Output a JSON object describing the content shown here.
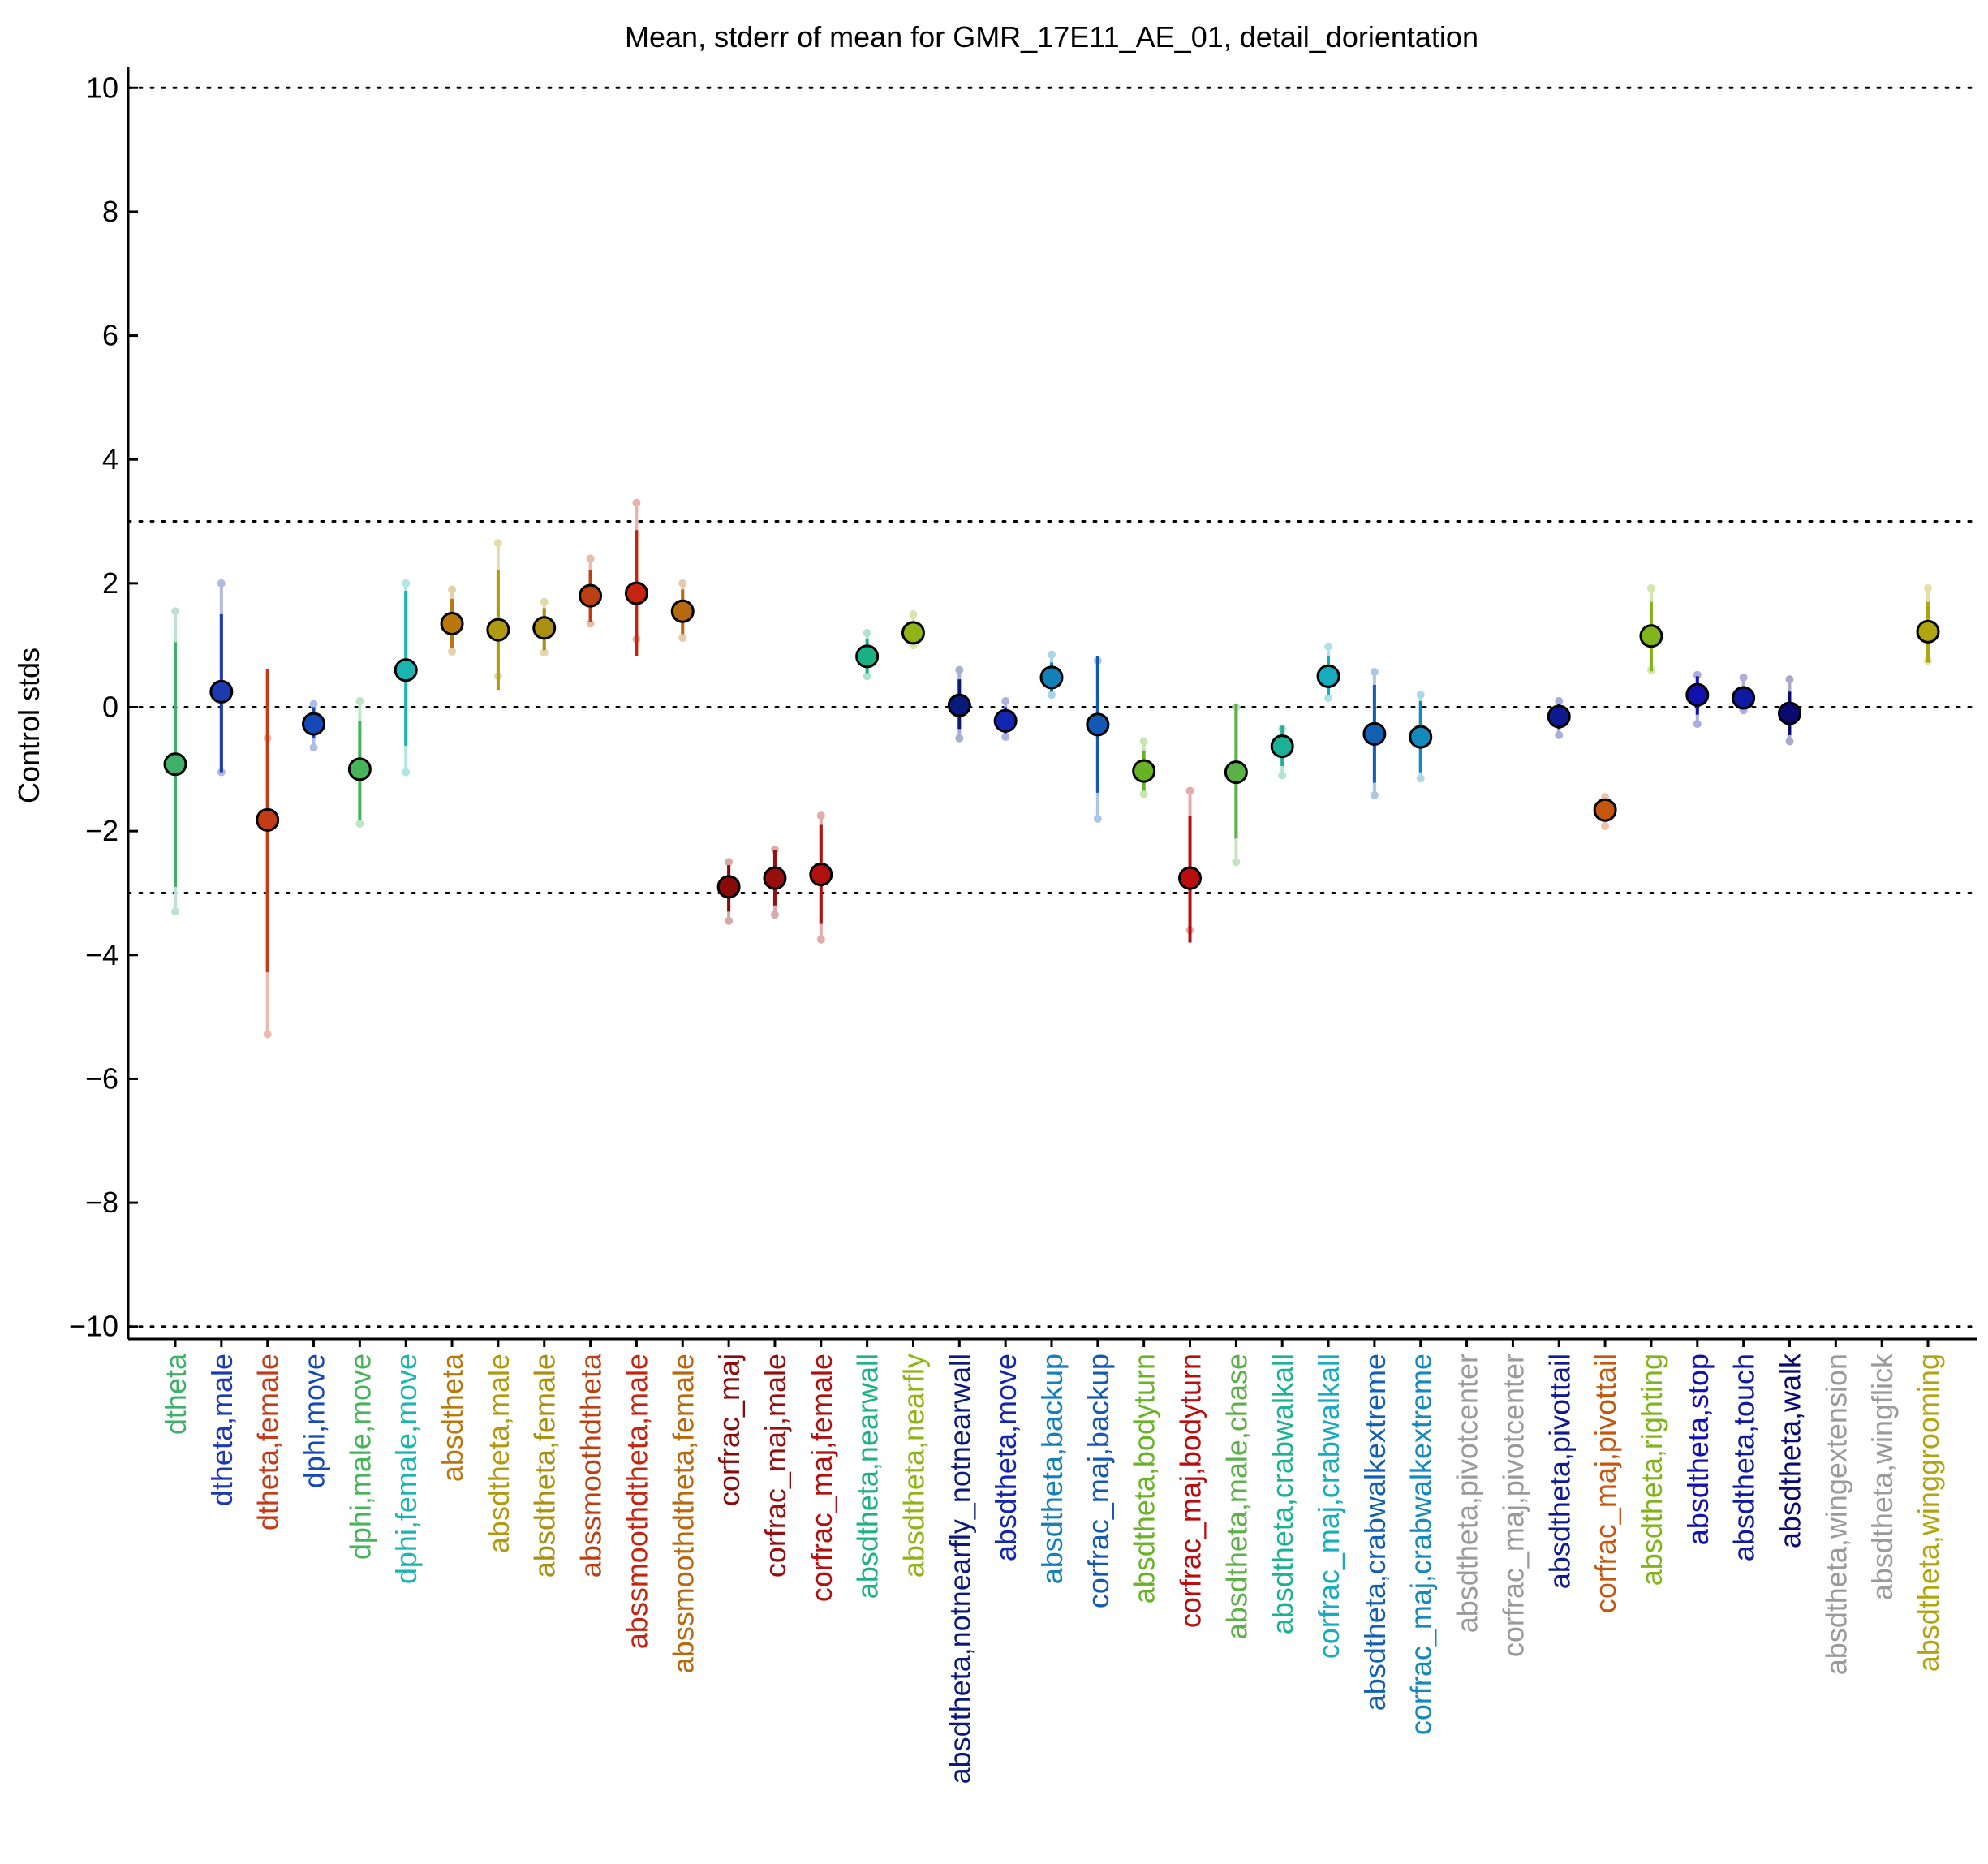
{
  "chart_data": {
    "type": "scatter",
    "title": "Mean, stderr of mean for GMR_17E11_AE_01, detail_dorientation",
    "xlabel": "",
    "ylabel": "Control stds",
    "ylim": [
      -10.2,
      10.2
    ],
    "yticks": [
      10,
      8,
      6,
      4,
      2,
      0,
      -2,
      -4,
      -6,
      -8,
      -10
    ],
    "ytick_labels": [
      "10",
      "8",
      "6",
      "4",
      "2",
      "0",
      "−2",
      "−4",
      "−6",
      "−8",
      "−10"
    ],
    "reference_lines": [
      10,
      3,
      0,
      -3,
      -10
    ],
    "grid": false,
    "legend": "none",
    "categories": [
      {
        "label": "dtheta",
        "color": "#3fb06a",
        "mean": -0.92,
        "err_lo": -2.9,
        "err_hi": 1.05,
        "ext_lo": -3.3,
        "ext_hi": 1.55
      },
      {
        "label": "dtheta,male",
        "color": "#1e3ab0",
        "mean": 0.25,
        "err_lo": -1.05,
        "err_hi": 1.5,
        "ext_lo": -1.05,
        "ext_hi": 2.0
      },
      {
        "label": "dtheta,female",
        "color": "#c33b17",
        "mean": -1.82,
        "err_lo": -4.28,
        "err_hi": 0.62,
        "ext_lo": -5.28,
        "ext_hi": -0.5
      },
      {
        "label": "dphi,move",
        "color": "#1549b8",
        "mean": -0.27,
        "err_lo": -0.5,
        "err_hi": 0.0,
        "ext_lo": -0.65,
        "ext_hi": 0.05
      },
      {
        "label": "dphi,male,move",
        "color": "#48b45a",
        "mean": -1.0,
        "err_lo": -1.82,
        "err_hi": -0.22,
        "ext_lo": -1.88,
        "ext_hi": 0.1
      },
      {
        "label": "dphi,female,move",
        "color": "#1ab5b0",
        "mean": 0.6,
        "err_lo": -0.62,
        "err_hi": 1.88,
        "ext_lo": -1.05,
        "ext_hi": 2.0
      },
      {
        "label": "absdtheta",
        "color": "#b8780e",
        "mean": 1.35,
        "err_lo": 0.95,
        "err_hi": 1.75,
        "ext_lo": 0.9,
        "ext_hi": 1.9
      },
      {
        "label": "absdtheta,male",
        "color": "#b09a10",
        "mean": 1.25,
        "err_lo": 0.28,
        "err_hi": 2.22,
        "ext_lo": 0.5,
        "ext_hi": 2.65
      },
      {
        "label": "absdtheta,female",
        "color": "#a98f12",
        "mean": 1.28,
        "err_lo": 0.92,
        "err_hi": 1.6,
        "ext_lo": 0.88,
        "ext_hi": 1.7
      },
      {
        "label": "abssmoothdtheta",
        "color": "#bd4012",
        "mean": 1.8,
        "err_lo": 1.38,
        "err_hi": 2.22,
        "ext_lo": 1.35,
        "ext_hi": 2.4
      },
      {
        "label": "abssmoothdtheta,male",
        "color": "#c42410",
        "mean": 1.84,
        "err_lo": 0.82,
        "err_hi": 2.86,
        "ext_lo": 1.1,
        "ext_hi": 3.3
      },
      {
        "label": "abssmoothdtheta,female",
        "color": "#b8680e",
        "mean": 1.55,
        "err_lo": 1.18,
        "err_hi": 1.9,
        "ext_lo": 1.12,
        "ext_hi": 2.0
      },
      {
        "label": "corfrac_maj",
        "color": "#8a0a0a",
        "mean": -2.9,
        "err_lo": -3.3,
        "err_hi": -2.55,
        "ext_lo": -3.45,
        "ext_hi": -2.5
      },
      {
        "label": "corfrac_maj,male",
        "color": "#970e0e",
        "mean": -2.76,
        "err_lo": -3.2,
        "err_hi": -2.3,
        "ext_lo": -3.35,
        "ext_hi": -2.3
      },
      {
        "label": "corfrac_maj,female",
        "color": "#b0100e",
        "mean": -2.7,
        "err_lo": -3.5,
        "err_hi": -1.9,
        "ext_lo": -3.75,
        "ext_hi": -1.75
      },
      {
        "label": "absdtheta,nearwall",
        "color": "#1cb085",
        "mean": 0.82,
        "err_lo": 0.55,
        "err_hi": 1.1,
        "ext_lo": 0.5,
        "ext_hi": 1.2
      },
      {
        "label": "absdtheta,nearfly",
        "color": "#90b418",
        "mean": 1.2,
        "err_lo": 1.05,
        "err_hi": 1.35,
        "ext_lo": 1.0,
        "ext_hi": 1.5
      },
      {
        "label": "absdtheta,notnearfly_notnearwall",
        "color": "#0a1a7a",
        "mean": 0.03,
        "err_lo": -0.35,
        "err_hi": 0.45,
        "ext_lo": -0.5,
        "ext_hi": 0.6
      },
      {
        "label": "absdtheta,move",
        "color": "#1326b0",
        "mean": -0.22,
        "err_lo": -0.42,
        "err_hi": 0.0,
        "ext_lo": -0.48,
        "ext_hi": 0.1
      },
      {
        "label": "absdtheta,backup",
        "color": "#1480b8",
        "mean": 0.48,
        "err_lo": 0.25,
        "err_hi": 0.72,
        "ext_lo": 0.2,
        "ext_hi": 0.85
      },
      {
        "label": "corfrac_maj,backup",
        "color": "#1458b3",
        "mean": -0.28,
        "err_lo": -1.38,
        "err_hi": 0.82,
        "ext_lo": -1.8,
        "ext_hi": 0.75
      },
      {
        "label": "absdtheta,bodyturn",
        "color": "#68b325",
        "mean": -1.03,
        "err_lo": -1.35,
        "err_hi": -0.7,
        "ext_lo": -1.4,
        "ext_hi": -0.55
      },
      {
        "label": "corfrac_maj,bodyturn",
        "color": "#b80e0e",
        "mean": -2.76,
        "err_lo": -3.8,
        "err_hi": -1.75,
        "ext_lo": -3.6,
        "ext_hi": -1.35
      },
      {
        "label": "absdtheta,male,chase",
        "color": "#5cb048",
        "mean": -1.05,
        "err_lo": -2.12,
        "err_hi": 0.05,
        "ext_lo": -2.5,
        "ext_hi": 0.0
      },
      {
        "label": "absdtheta,crabwalkall",
        "color": "#1cb095",
        "mean": -0.63,
        "err_lo": -0.95,
        "err_hi": -0.3,
        "ext_lo": -1.1,
        "ext_hi": -0.35
      },
      {
        "label": "corfrac_maj,crabwalkall",
        "color": "#18aabd",
        "mean": 0.5,
        "err_lo": 0.2,
        "err_hi": 0.82,
        "ext_lo": 0.15,
        "ext_hi": 0.98
      },
      {
        "label": "absdtheta,crabwalkextreme",
        "color": "#1460b0",
        "mean": -0.43,
        "err_lo": -1.22,
        "err_hi": 0.36,
        "ext_lo": -1.42,
        "ext_hi": 0.57
      },
      {
        "label": "corfrac_maj,crabwalkextreme",
        "color": "#148aba",
        "mean": -0.48,
        "err_lo": -1.05,
        "err_hi": 0.1,
        "ext_lo": -1.15,
        "ext_hi": 0.2
      },
      {
        "label": "absdtheta,pivotcenter",
        "color": "#9a9a9a",
        "mean": null,
        "err_lo": null,
        "err_hi": null,
        "ext_lo": null,
        "ext_hi": null
      },
      {
        "label": "corfrac_maj,pivotcenter",
        "color": "#9a9a9a",
        "mean": null,
        "err_lo": null,
        "err_hi": null,
        "ext_lo": null,
        "ext_hi": null
      },
      {
        "label": "absdtheta,pivottail",
        "color": "#0d1a90",
        "mean": -0.15,
        "err_lo": -0.35,
        "err_hi": 0.05,
        "ext_lo": -0.45,
        "ext_hi": 0.1
      },
      {
        "label": "corfrac_maj,pivottail",
        "color": "#c4560e",
        "mean": -1.66,
        "err_lo": -1.8,
        "err_hi": -1.52,
        "ext_lo": -1.92,
        "ext_hi": -1.45
      },
      {
        "label": "absdtheta,righting",
        "color": "#80b41a",
        "mean": 1.15,
        "err_lo": 0.58,
        "err_hi": 1.7,
        "ext_lo": 0.6,
        "ext_hi": 1.92
      },
      {
        "label": "absdtheta,stop",
        "color": "#1111b0",
        "mean": 0.2,
        "err_lo": -0.12,
        "err_hi": 0.5,
        "ext_lo": -0.27,
        "ext_hi": 0.52
      },
      {
        "label": "absdtheta,touch",
        "color": "#0e1ba0",
        "mean": 0.15,
        "err_lo": 0.0,
        "err_hi": 0.32,
        "ext_lo": -0.05,
        "ext_hi": 0.48
      },
      {
        "label": "absdtheta,walk",
        "color": "#0a0a70",
        "mean": -0.1,
        "err_lo": -0.45,
        "err_hi": 0.25,
        "ext_lo": -0.55,
        "ext_hi": 0.45
      },
      {
        "label": "absdtheta,wingextension",
        "color": "#9a9a9a",
        "mean": null,
        "err_lo": null,
        "err_hi": null,
        "ext_lo": null,
        "ext_hi": null
      },
      {
        "label": "absdtheta,wingflick",
        "color": "#9a9a9a",
        "mean": null,
        "err_lo": null,
        "err_hi": null,
        "ext_lo": null,
        "ext_hi": null
      },
      {
        "label": "absdtheta,winggrooming",
        "color": "#b0a510",
        "mean": 1.22,
        "err_lo": 0.72,
        "err_hi": 1.7,
        "ext_lo": 0.75,
        "ext_hi": 1.92
      }
    ]
  }
}
